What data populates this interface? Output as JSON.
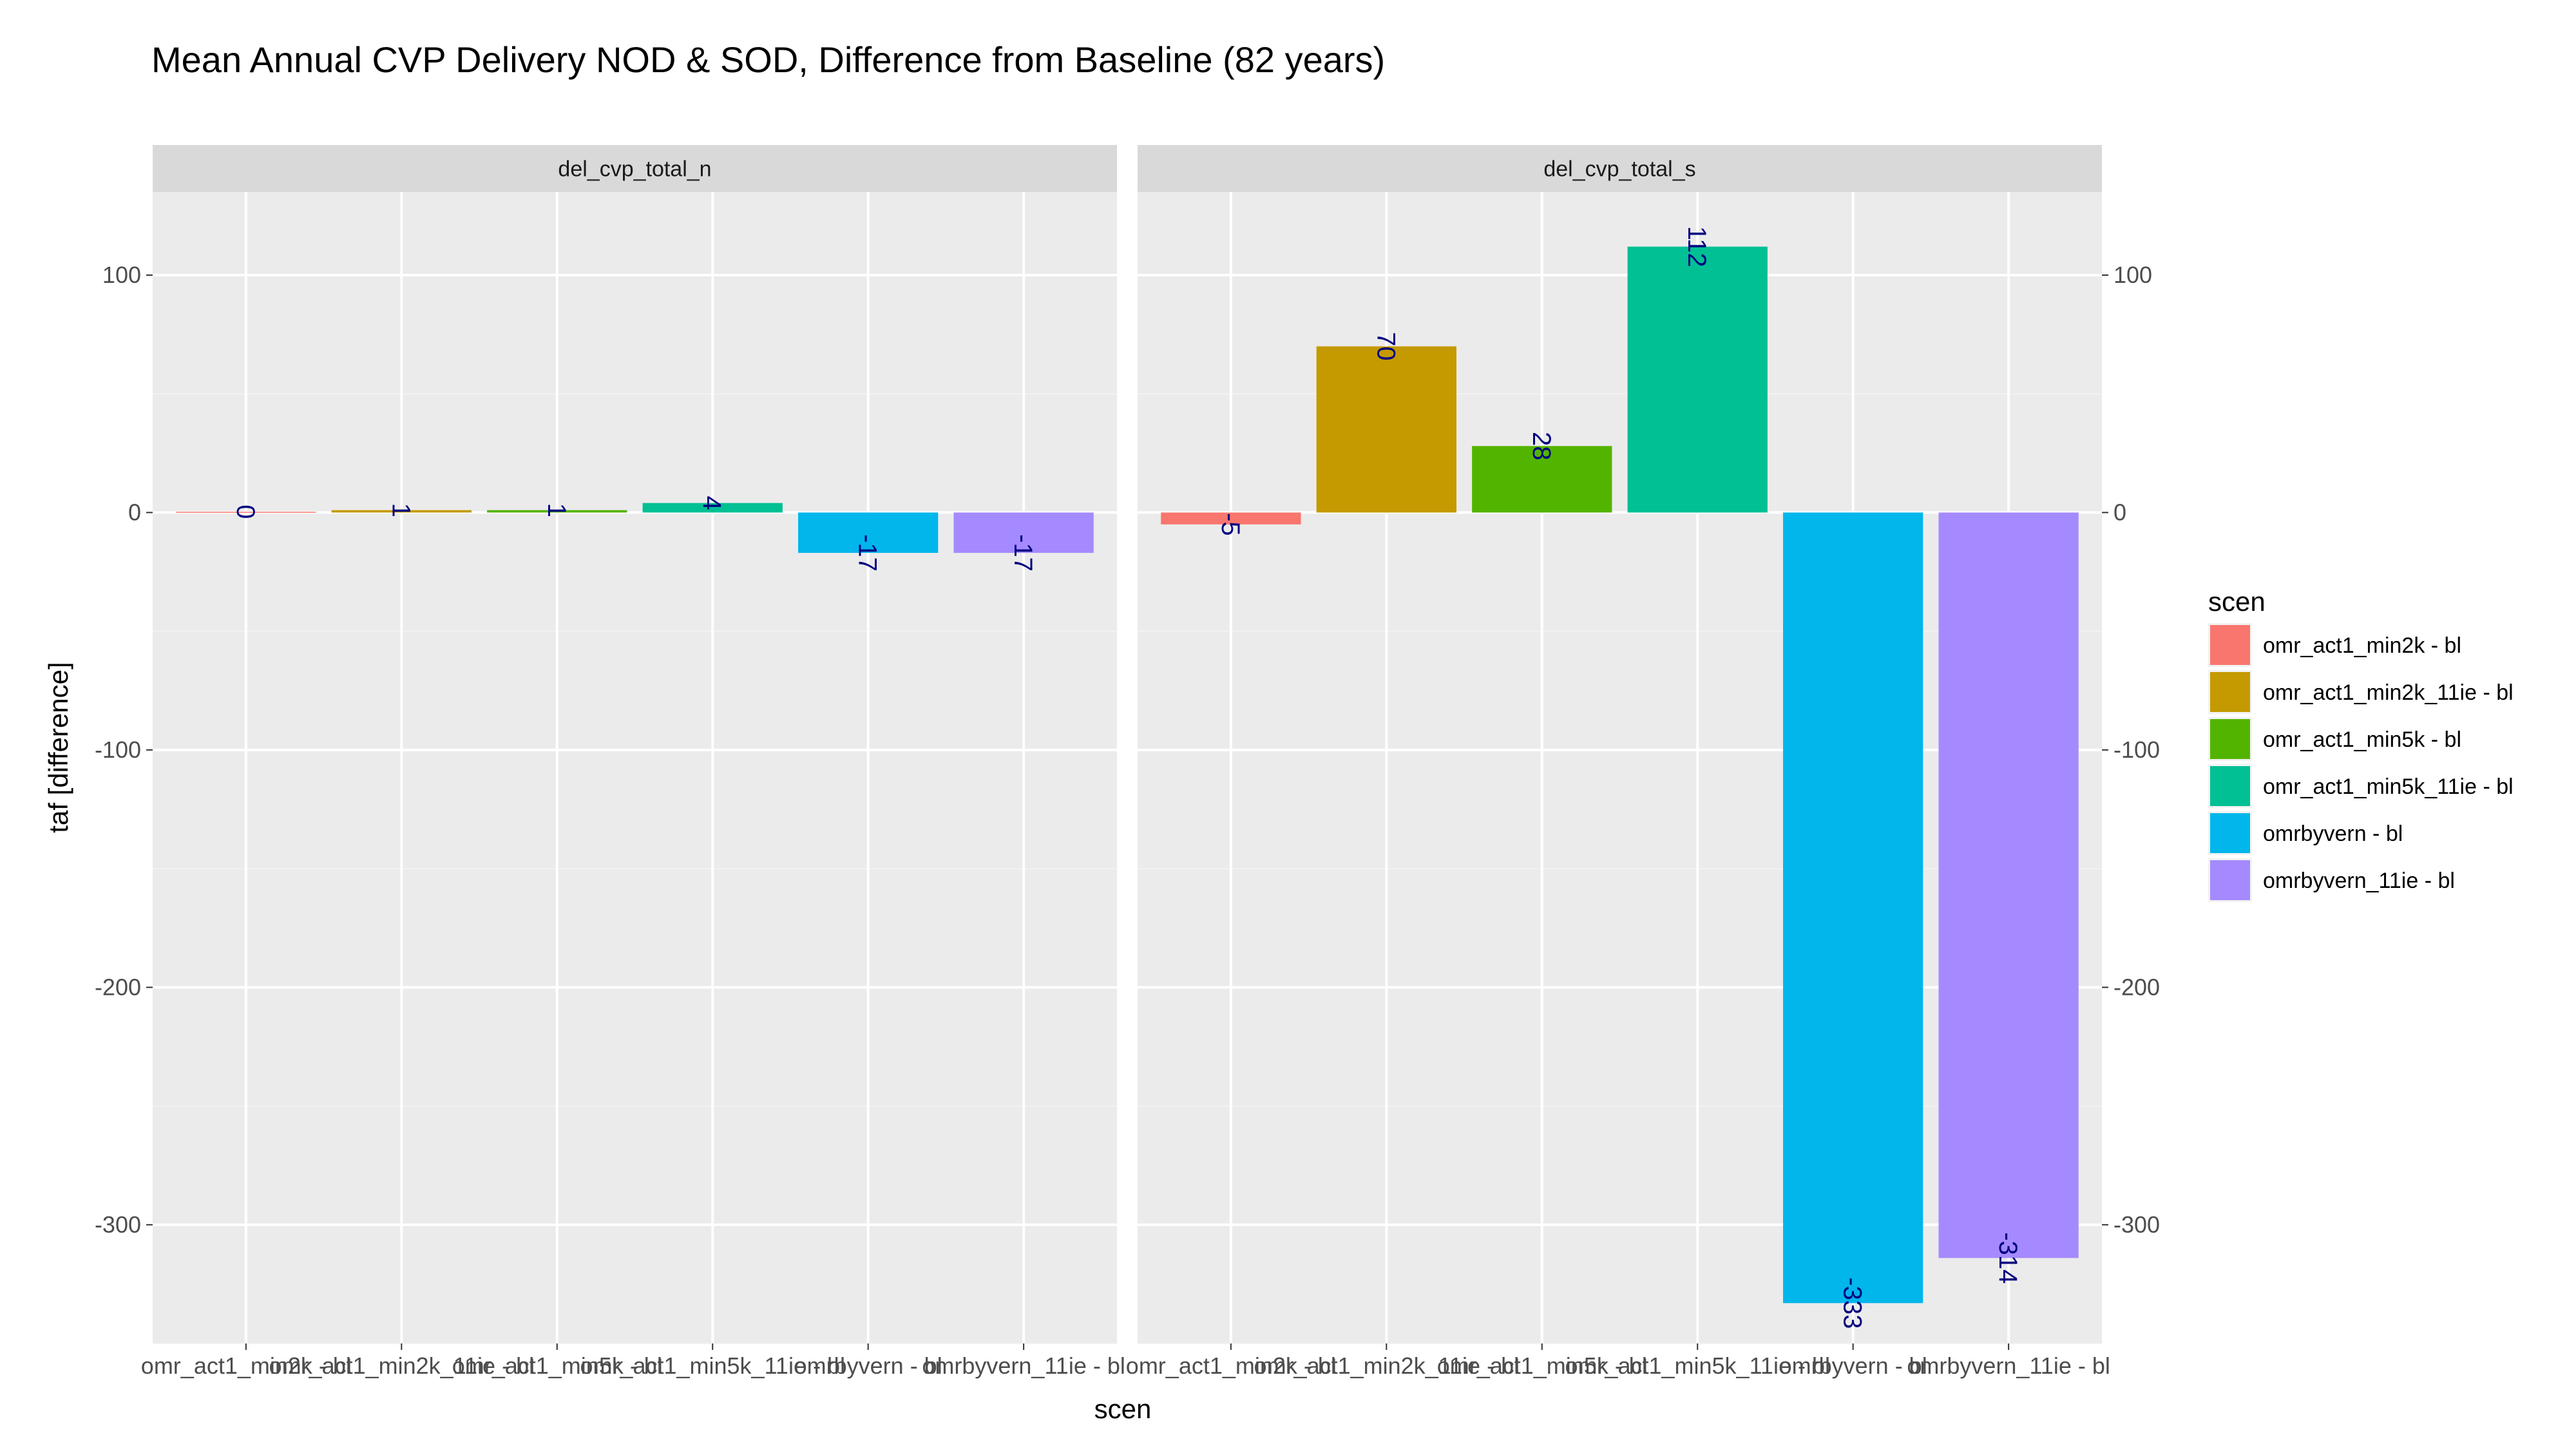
{
  "chart_data": {
    "type": "bar",
    "title": "Mean Annual CVP Delivery NOD & SOD, Difference from Baseline (82 years)",
    "xlabel": "scen",
    "ylabel": "taf [difference]",
    "ylim": [
      -350,
      135
    ],
    "yticks": [
      -300,
      -200,
      -100,
      0,
      100
    ],
    "grid": true,
    "legend_position": "right",
    "legend_title": "scen",
    "categories": [
      "omr_act1_min2k - bl",
      "omr_act1_min2k_11ie - bl",
      "omr_act1_min5k - bl",
      "omr_act1_min5k_11ie - bl",
      "omrbyvern - bl",
      "omrbyvern_11ie - bl"
    ],
    "colors": [
      "#F8766D",
      "#C49A00",
      "#53B400",
      "#00C094",
      "#00B6EB",
      "#A58AFF"
    ],
    "label_color": "#000080",
    "panels": [
      {
        "strip": "del_cvp_total_n",
        "values": [
          0.3,
          1,
          1,
          4,
          -17,
          -17
        ],
        "labels": [
          "0",
          "1",
          "1",
          "4",
          "-17",
          "-17"
        ]
      },
      {
        "strip": "del_cvp_total_s",
        "values": [
          -5,
          70,
          28,
          112,
          -333,
          -314
        ],
        "labels": [
          "-5",
          "70",
          "28",
          "112",
          "-333",
          "-314"
        ]
      }
    ]
  }
}
